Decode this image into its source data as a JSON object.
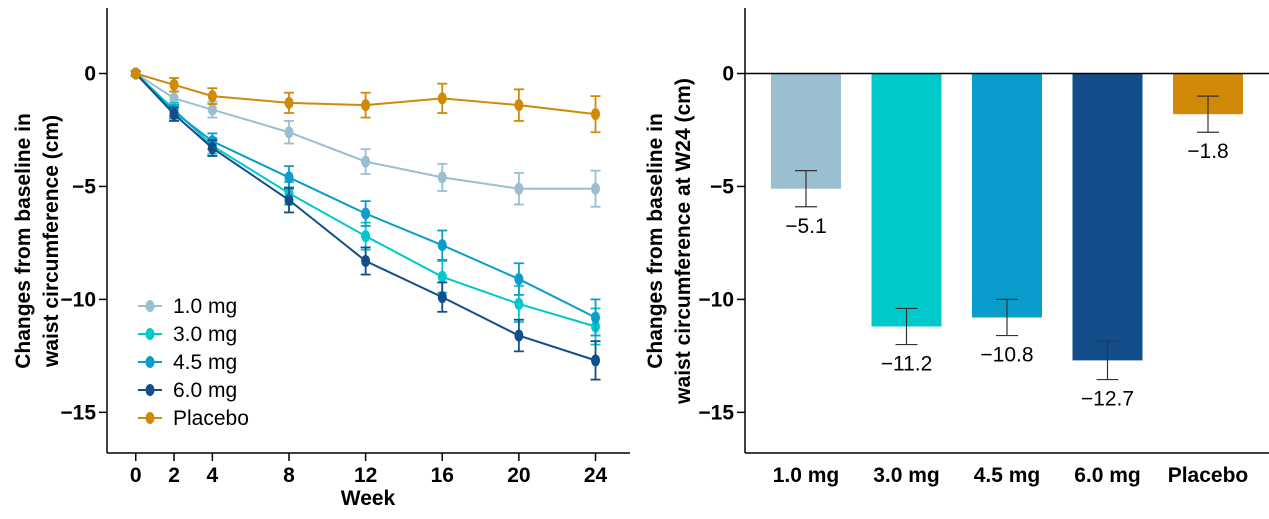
{
  "chart_data": [
    {
      "type": "line",
      "title": "",
      "xlabel": "Week",
      "ylabel": "Changes from baseline in waist circumference (cm)",
      "ylabel_lines": [
        "Changes from baseline in",
        "waist circumference (cm)"
      ],
      "x": [
        0,
        2,
        4,
        8,
        12,
        16,
        20,
        24
      ],
      "xticks": [
        "0",
        "2",
        "4",
        "8",
        "12",
        "16",
        "20",
        "24"
      ],
      "yticks": [
        0,
        -5,
        -10,
        -15
      ],
      "ytick_labels": [
        "0",
        "−5",
        "−10",
        "−15"
      ],
      "ylim": [
        -16.8,
        2.9
      ],
      "xlim": [
        -1.5,
        25.8
      ],
      "legend_position": "bottom-left",
      "series": [
        {
          "name": "1.0 mg",
          "color": "#9bbfd0",
          "values": [
            0,
            -1.1,
            -1.6,
            -2.6,
            -3.9,
            -4.6,
            -5.1,
            -5.1
          ],
          "err": [
            0.1,
            0.3,
            0.35,
            0.5,
            0.55,
            0.6,
            0.7,
            0.8
          ]
        },
        {
          "name": "3.0 mg",
          "color": "#00c9cc",
          "values": [
            0,
            -1.6,
            -3.2,
            -5.3,
            -7.2,
            -9.0,
            -10.2,
            -11.2
          ],
          "err": [
            0.1,
            0.3,
            0.35,
            0.5,
            0.6,
            0.7,
            0.8,
            0.8
          ]
        },
        {
          "name": "4.5 mg",
          "color": "#0a9dcc",
          "values": [
            0,
            -1.7,
            -3.0,
            -4.6,
            -6.2,
            -7.6,
            -9.1,
            -10.8
          ],
          "err": [
            0.1,
            0.3,
            0.35,
            0.5,
            0.55,
            0.65,
            0.7,
            0.8
          ]
        },
        {
          "name": "6.0 mg",
          "color": "#124e8a",
          "values": [
            0,
            -1.8,
            -3.3,
            -5.6,
            -8.3,
            -9.9,
            -11.6,
            -12.7
          ],
          "err": [
            0.1,
            0.3,
            0.35,
            0.55,
            0.6,
            0.65,
            0.7,
            0.85
          ]
        },
        {
          "name": "Placebo",
          "color": "#d08a07",
          "values": [
            0,
            -0.5,
            -1.0,
            -1.3,
            -1.4,
            -1.1,
            -1.4,
            -1.8
          ],
          "err": [
            0.1,
            0.3,
            0.35,
            0.45,
            0.55,
            0.65,
            0.7,
            0.8
          ]
        }
      ]
    },
    {
      "type": "bar",
      "title": "",
      "xlabel": "",
      "ylabel": "Changes from baseline in waist circumference at W24 (cm)",
      "ylabel_lines": [
        "Changes from baseline in",
        "waist circumference at W24 (cm)"
      ],
      "categories": [
        "1.0 mg",
        "3.0 mg",
        "4.5 mg",
        "6.0 mg",
        "Placebo"
      ],
      "values": [
        -5.1,
        -11.2,
        -10.8,
        -12.7,
        -1.8
      ],
      "value_labels": [
        "−5.1",
        "−11.2",
        "−10.8",
        "−12.7",
        "−1.8"
      ],
      "err": [
        0.8,
        0.8,
        0.8,
        0.85,
        0.8
      ],
      "colors": [
        "#9bbfd0",
        "#00c9cc",
        "#0a9dcc",
        "#124e8a",
        "#d08a07"
      ],
      "yticks": [
        0,
        -5,
        -10,
        -15
      ],
      "ytick_labels": [
        "0",
        "−5",
        "−10",
        "−15"
      ],
      "ylim": [
        -16.8,
        2.9
      ]
    }
  ]
}
